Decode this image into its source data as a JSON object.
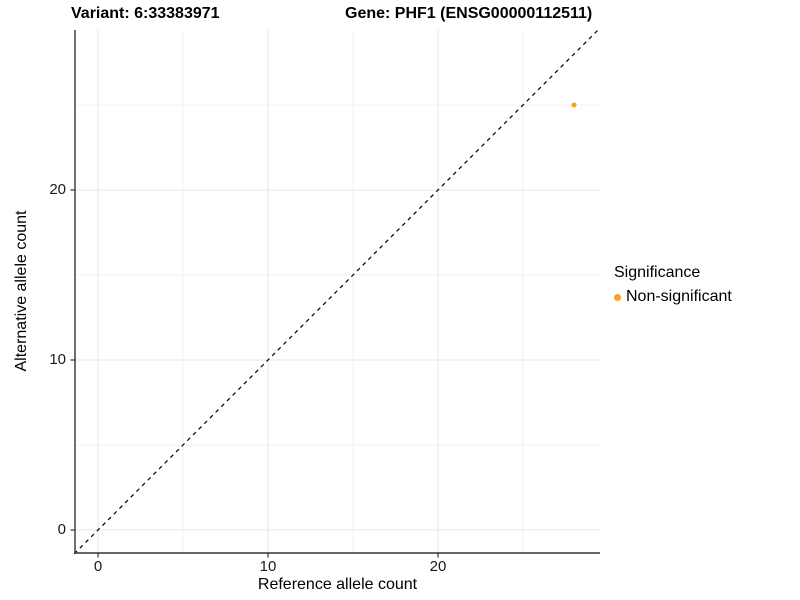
{
  "title": {
    "variant": "Variant: 6:33383971",
    "gene": "Gene: PHF1 (ENSG00000112511)"
  },
  "chart_data": {
    "type": "scatter",
    "title": "Variant: 6:33383971   Gene: PHF1 (ENSG00000112511)",
    "xlabel": "Reference allele count",
    "ylabel": "Alternative allele count",
    "xlim": [
      -1.4,
      29.4
    ],
    "ylim": [
      -1.4,
      29.4
    ],
    "x_ticks": [
      0,
      10,
      20
    ],
    "y_ticks": [
      0,
      10,
      20
    ],
    "grid": {
      "major": [
        0,
        10,
        20
      ],
      "minor": [
        5,
        15,
        25
      ]
    },
    "reference_line": {
      "style": "dashed",
      "equation": "y = x",
      "color": "#000000",
      "from": [
        -1.4,
        -1.4
      ],
      "to": [
        29.4,
        29.4
      ]
    },
    "series": [
      {
        "name": "Non-significant",
        "color": "#F8A028",
        "point_radius": 2.5,
        "points": [
          {
            "x": 28,
            "y": 25
          }
        ]
      }
    ],
    "legend": {
      "title": "Significance",
      "position": "right",
      "entries": [
        {
          "label": "Non-significant",
          "color": "#F8A028"
        }
      ]
    }
  },
  "colors": {
    "background": "#FFFFFF",
    "grid_major": "#E4E4E4",
    "grid_minor": "#F2F2F2",
    "axis_line": "#333333",
    "tick": "#333333",
    "text": "#000000"
  }
}
